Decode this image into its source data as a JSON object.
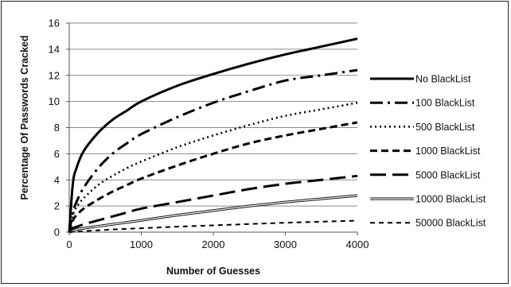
{
  "chart_data": {
    "type": "line",
    "title": "",
    "xlabel": "Number of Guesses",
    "ylabel": "Percentage Of Passwords  Cracked",
    "xlim": [
      0,
      4000
    ],
    "ylim": [
      0,
      16
    ],
    "x_ticks": [
      0,
      1000,
      2000,
      3000,
      4000
    ],
    "y_ticks": [
      0,
      2,
      4,
      6,
      8,
      10,
      12,
      14,
      16
    ],
    "grid": true,
    "legend_position": "right",
    "x": [
      0,
      50,
      100,
      200,
      400,
      600,
      800,
      1000,
      1500,
      2000,
      2500,
      3000,
      3500,
      4000
    ],
    "series": [
      {
        "name": "No BlackList",
        "style": "solid",
        "values": [
          0,
          3.7,
          4.9,
          6.2,
          7.6,
          8.6,
          9.3,
          10.0,
          11.2,
          12.1,
          12.9,
          13.6,
          14.2,
          14.8
        ]
      },
      {
        "name": "100 BlackList",
        "style": "dash-dot",
        "values": [
          0,
          1.5,
          2.3,
          3.4,
          4.9,
          6.0,
          6.8,
          7.5,
          8.8,
          9.9,
          10.8,
          11.6,
          12.0,
          12.4
        ]
      },
      {
        "name": "500 BlackList",
        "style": "dotted",
        "values": [
          0,
          1.3,
          1.9,
          2.6,
          3.6,
          4.3,
          4.9,
          5.4,
          6.5,
          7.4,
          8.2,
          8.9,
          9.4,
          9.9
        ]
      },
      {
        "name": "1000 BlackList",
        "style": "dashed",
        "values": [
          0,
          0.9,
          1.3,
          1.8,
          2.5,
          3.1,
          3.6,
          4.1,
          5.1,
          6.0,
          6.8,
          7.4,
          7.9,
          8.4
        ]
      },
      {
        "name": "5000 BlackList",
        "style": "long-dash",
        "values": [
          0,
          0.3,
          0.4,
          0.6,
          0.9,
          1.2,
          1.5,
          1.8,
          2.3,
          2.8,
          3.3,
          3.7,
          4.0,
          4.3
        ]
      },
      {
        "name": "10000 BlackList",
        "style": "double-line",
        "values": [
          0,
          0.1,
          0.2,
          0.3,
          0.45,
          0.6,
          0.75,
          0.9,
          1.3,
          1.65,
          2.0,
          2.3,
          2.55,
          2.8
        ]
      },
      {
        "name": "50000 BlackList",
        "style": "short-dash",
        "values": [
          0,
          0.03,
          0.05,
          0.08,
          0.14,
          0.2,
          0.25,
          0.3,
          0.42,
          0.52,
          0.62,
          0.72,
          0.8,
          0.88
        ]
      }
    ]
  }
}
